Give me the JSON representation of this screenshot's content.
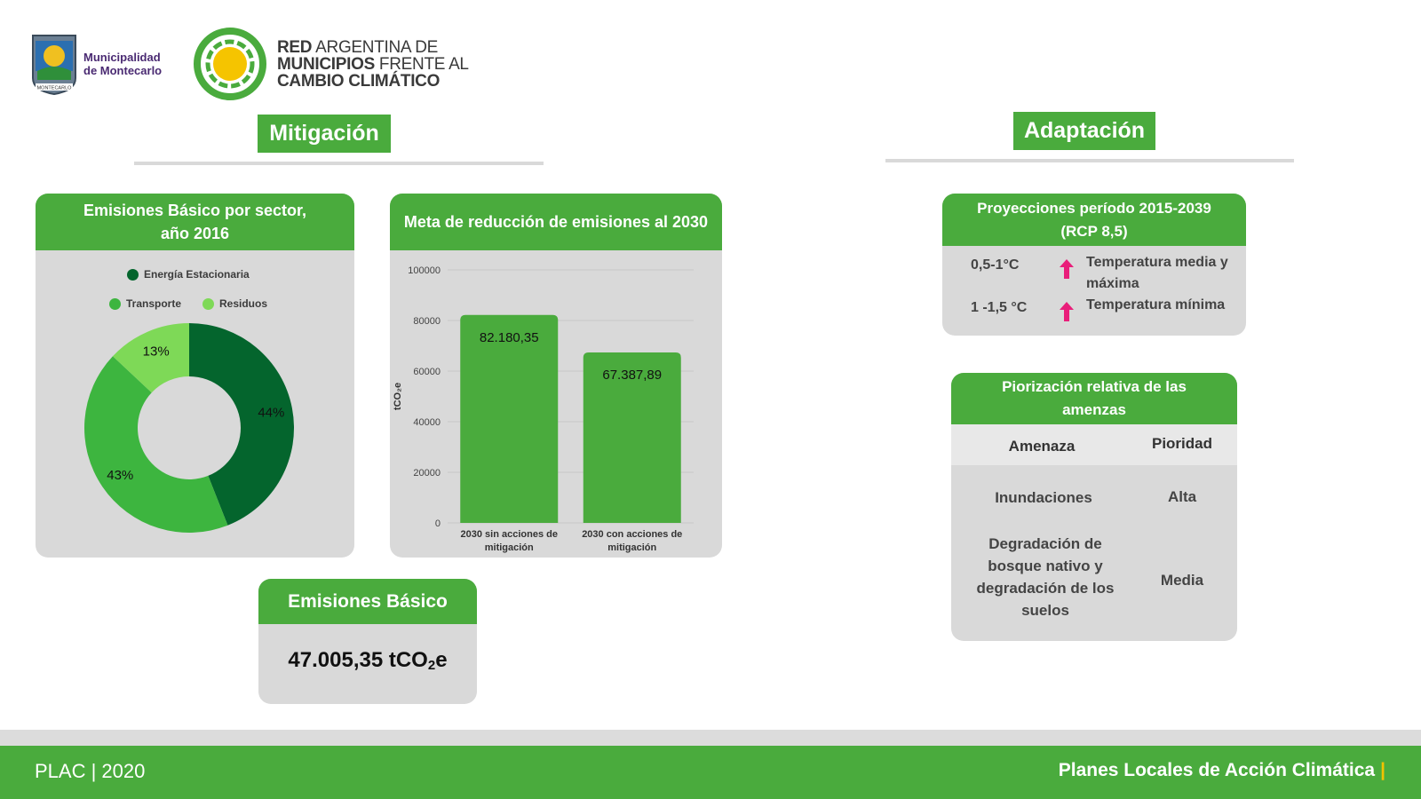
{
  "logos": {
    "municipality": {
      "line1": "Municipalidad",
      "line2": "de Montecarlo",
      "shield_label": "MONTECARLO"
    },
    "network": {
      "line1_bold": "RED",
      "line1_rest": " ARGENTINA DE",
      "line2_bold": "MUNICIPIOS",
      "line2_rest": " FRENTE AL",
      "line3_bold": "CAMBIO CLIMÁTICO"
    }
  },
  "sections": {
    "mitigation": "Mitigación",
    "adaptation": "Adaptación"
  },
  "emissions_sector": {
    "title_line1": "Emisiones Básico por sector,",
    "title_line2": "año 2016",
    "legend": [
      "Energía Estacionaria",
      "Transporte",
      "Residuos"
    ]
  },
  "reduction_goal": {
    "title": "Meta de reducción de emisiones al 2030"
  },
  "emissions_basic": {
    "title": "Emisiones Básico",
    "value": "47.005,35 tCO",
    "sub": "2",
    "unit_tail": "e"
  },
  "projections": {
    "title_line1": "Proyecciones período 2015-2039",
    "title_line2": "(RCP 8,5)",
    "rows": [
      {
        "value": "0,5-1°C",
        "desc": "Temperatura media y máxima"
      },
      {
        "value": "1 -1,5 °C",
        "desc": "Temperatura mínima"
      }
    ]
  },
  "prioritization": {
    "title_line1": "Piorización relativa de las",
    "title_line2": "amenzas",
    "col_threat": "Amenaza",
    "col_priority": "Pioridad",
    "rows": [
      {
        "threat": "Inundaciones",
        "priority": "Alta"
      },
      {
        "threat": "Degradación de bosque nativo y degradación de los suelos",
        "priority": "Media"
      }
    ]
  },
  "footer": {
    "left": "PLAC | 2020",
    "right": "Planes Locales de Acción Climática",
    "bar": "|"
  },
  "colors": {
    "green": "#4aab3d",
    "dark_green": "#04652d",
    "light_green": "#7ed957",
    "mid_green": "#3db53f",
    "arrow_pink": "#e91e7a"
  },
  "chart_data": [
    {
      "type": "pie",
      "donut": true,
      "title": "Emisiones Básico por sector, año 2016",
      "categories": [
        "Energía Estacionaria",
        "Transporte",
        "Residuos"
      ],
      "values": [
        44,
        43,
        13
      ],
      "labels": [
        "44%",
        "43%",
        "13%"
      ],
      "colors": [
        "#04652d",
        "#3db53f",
        "#7ed957"
      ],
      "legend": "top"
    },
    {
      "type": "bar",
      "title": "Meta de reducción de emisiones al 2030",
      "categories": [
        "2030 sin acciones de mitigación",
        "2030 con acciones de mitigación"
      ],
      "values": [
        82180.35,
        67387.89
      ],
      "data_labels": [
        "82.180,35",
        "67.387,89"
      ],
      "ylabel": "tCO₂e",
      "ylim": [
        0,
        100000
      ],
      "yticks": [
        0,
        20000,
        40000,
        60000,
        80000,
        100000
      ],
      "ytick_labels": [
        "0",
        "20000",
        "40000",
        "60000",
        "80000",
        "100000"
      ],
      "grid": true
    }
  ]
}
